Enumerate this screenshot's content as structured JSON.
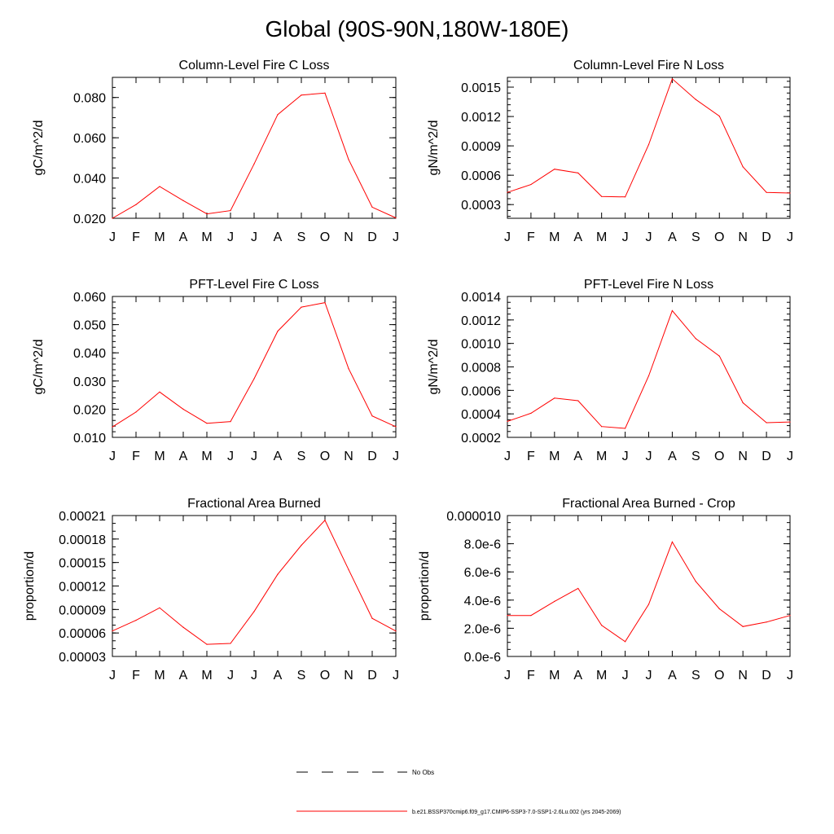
{
  "title": "Global (90S-90N,180W-180E)",
  "legend": {
    "obs_label": "No Obs",
    "model_label": "b.e21.BSSP370cmip6.f09_g17.CMIP6-SSP3-7.0-SSP1-2.6Lu.002 (yrs 2045-2069)",
    "model_color": "#ff0000"
  },
  "chart_data": [
    {
      "type": "line",
      "title": "Column-Level Fire C Loss",
      "ylabel": "gC/m^2/d",
      "xlabel": "",
      "categories": [
        "J",
        "F",
        "M",
        "A",
        "M",
        "J",
        "J",
        "A",
        "S",
        "O",
        "N",
        "D",
        "J"
      ],
      "ylim": [
        0.02,
        0.09
      ],
      "yticks": [
        0.02,
        0.04,
        0.06,
        0.08
      ],
      "ytick_labels": [
        "0.020",
        "0.040",
        "0.060",
        "0.080"
      ],
      "yminor": 0.005,
      "series": [
        {
          "color": "#ff0000",
          "values": [
            0.02,
            0.0268,
            0.0358,
            0.0288,
            0.0222,
            0.0238,
            0.047,
            0.0715,
            0.0812,
            0.0822,
            0.0492,
            0.0255,
            0.0202
          ]
        }
      ]
    },
    {
      "type": "line",
      "title": "Column-Level Fire N Loss",
      "ylabel": "gN/m^2/d",
      "xlabel": "",
      "categories": [
        "J",
        "F",
        "M",
        "A",
        "M",
        "J",
        "J",
        "A",
        "S",
        "O",
        "N",
        "D",
        "J"
      ],
      "ylim": [
        0.00016,
        0.0016
      ],
      "yticks": [
        0.0003,
        0.0006,
        0.0009,
        0.0012,
        0.0015
      ],
      "ytick_labels": [
        "0.0003",
        "0.0006",
        "0.0009",
        "0.0012",
        "0.0015"
      ],
      "yminor": 6e-05,
      "series": [
        {
          "color": "#ff0000",
          "values": [
            0.000425,
            0.000505,
            0.000662,
            0.000623,
            0.000383,
            0.000378,
            0.000913,
            0.001585,
            0.001374,
            0.001204,
            0.000686,
            0.000425,
            0.000418
          ]
        }
      ]
    },
    {
      "type": "line",
      "title": "PFT-Level Fire C Loss",
      "ylabel": "gC/m^2/d",
      "xlabel": "",
      "categories": [
        "J",
        "F",
        "M",
        "A",
        "M",
        "J",
        "J",
        "A",
        "S",
        "O",
        "N",
        "D",
        "J"
      ],
      "ylim": [
        0.01,
        0.06
      ],
      "yticks": [
        0.01,
        0.02,
        0.03,
        0.04,
        0.05,
        0.06
      ],
      "ytick_labels": [
        "0.010",
        "0.020",
        "0.030",
        "0.040",
        "0.050",
        "0.060"
      ],
      "yminor": 0.002,
      "series": [
        {
          "color": "#ff0000",
          "values": [
            0.0137,
            0.019,
            0.0261,
            0.02,
            0.015,
            0.0156,
            0.0308,
            0.0477,
            0.0562,
            0.0578,
            0.0344,
            0.0176,
            0.0138
          ]
        }
      ]
    },
    {
      "type": "line",
      "title": "PFT-Level Fire N Loss",
      "ylabel": "gN/m^2/d",
      "xlabel": "",
      "categories": [
        "J",
        "F",
        "M",
        "A",
        "M",
        "J",
        "J",
        "A",
        "S",
        "O",
        "N",
        "D",
        "J"
      ],
      "ylim": [
        0.0002,
        0.0014
      ],
      "yticks": [
        0.0002,
        0.0004,
        0.0006,
        0.0008,
        0.001,
        0.0012,
        0.0014
      ],
      "ytick_labels": [
        "0.0002",
        "0.0004",
        "0.0006",
        "0.0008",
        "0.0010",
        "0.0012",
        "0.0014"
      ],
      "yminor": 5e-05,
      "series": [
        {
          "color": "#ff0000",
          "values": [
            0.000336,
            0.000405,
            0.000534,
            0.000512,
            0.000292,
            0.000276,
            0.000724,
            0.001279,
            0.001041,
            0.000892,
            0.000495,
            0.000325,
            0.000331
          ]
        }
      ]
    },
    {
      "type": "line",
      "title": "Fractional Area Burned",
      "ylabel": "proportion/d",
      "xlabel": "",
      "categories": [
        "J",
        "F",
        "M",
        "A",
        "M",
        "J",
        "J",
        "A",
        "S",
        "O",
        "N",
        "D",
        "J"
      ],
      "ylim": [
        3e-05,
        0.00021
      ],
      "yticks": [
        3e-05,
        6e-05,
        9e-05,
        0.00012,
        0.00015,
        0.00018,
        0.00021
      ],
      "ytick_labels": [
        "0.00003",
        "0.00006",
        "0.00009",
        "0.00012",
        "0.00015",
        "0.00018",
        "0.00021"
      ],
      "yminor": 1e-05,
      "series": [
        {
          "color": "#ff0000",
          "values": [
            6.26e-05,
            7.62e-05,
            9.21e-05,
            6.73e-05,
            4.55e-05,
            4.66e-05,
            8.74e-05,
            0.000135,
            0.000172,
            0.000204,
            0.000141,
            7.87e-05,
            6.25e-05
          ]
        }
      ]
    },
    {
      "type": "line",
      "title": "Fractional Area Burned - Crop",
      "ylabel": "proportion/d",
      "xlabel": "",
      "categories": [
        "J",
        "F",
        "M",
        "A",
        "M",
        "J",
        "J",
        "A",
        "S",
        "O",
        "N",
        "D",
        "J"
      ],
      "ylim": [
        0,
        1e-05
      ],
      "yticks": [
        0,
        2e-06,
        4e-06,
        6e-06,
        8e-06,
        1e-05
      ],
      "ytick_labels": [
        "0.0e-6",
        "2.0e-6",
        "4.0e-6",
        "6.0e-6",
        "8.0e-6",
        "0.000010"
      ],
      "yminor": 5e-07,
      "series": [
        {
          "color": "#ff0000",
          "values": [
            2.91e-06,
            2.91e-06,
            3.91e-06,
            4.83e-06,
            2.21e-06,
            1.05e-06,
            3.7e-06,
            8.13e-06,
            5.32e-06,
            3.38e-06,
            2.12e-06,
            2.44e-06,
            2.91e-06
          ]
        }
      ]
    }
  ]
}
